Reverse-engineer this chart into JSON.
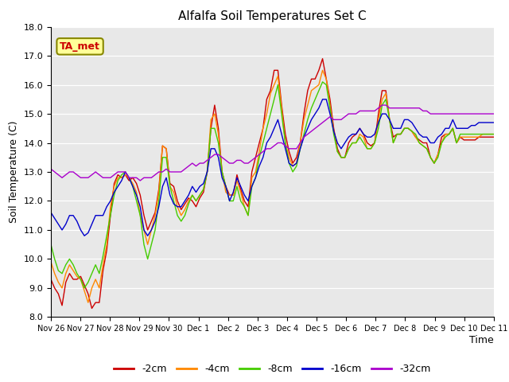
{
  "title": "Alfalfa Soil Temperatures Set C",
  "xlabel": "Time",
  "ylabel": "Soil Temperature (C)",
  "ylim": [
    8.0,
    18.0
  ],
  "yticks": [
    8.0,
    9.0,
    10.0,
    11.0,
    12.0,
    13.0,
    14.0,
    15.0,
    16.0,
    17.0,
    18.0
  ],
  "x_labels": [
    "Nov 26",
    "Nov 27",
    "Nov 28",
    "Nov 29",
    "Nov 30",
    "Dec 1",
    "Dec 2",
    "Dec 3",
    "Dec 4",
    "Dec 5",
    "Dec 6",
    "Dec 7",
    "Dec 8",
    "Dec 9",
    "Dec 10",
    "Dec 11"
  ],
  "colors": {
    "-2cm": "#cc0000",
    "-4cm": "#ff8800",
    "-8cm": "#44cc00",
    "-16cm": "#0000cc",
    "-32cm": "#aa00cc"
  },
  "plot_bg_color": "#e8e8e8",
  "fig_bg_color": "#ffffff",
  "grid_color": "#ffffff",
  "annotation_text": "TA_met",
  "annotation_box_facecolor": "#ffff99",
  "annotation_box_edgecolor": "#888800",
  "series": {
    "-2cm": [
      9.3,
      9.0,
      8.8,
      8.4,
      9.2,
      9.5,
      9.3,
      9.3,
      9.4,
      9.1,
      8.8,
      8.3,
      8.5,
      8.5,
      9.6,
      10.3,
      11.5,
      12.6,
      12.9,
      12.8,
      12.9,
      12.7,
      12.8,
      12.6,
      12.2,
      11.5,
      11.0,
      11.3,
      11.6,
      12.4,
      13.9,
      13.8,
      12.6,
      12.5,
      12.0,
      11.7,
      11.9,
      12.1,
      12.0,
      11.8,
      12.1,
      12.3,
      13.0,
      14.5,
      15.3,
      14.5,
      13.0,
      12.5,
      12.2,
      12.2,
      12.9,
      12.4,
      12.0,
      11.8,
      13.0,
      13.5,
      14.0,
      14.5,
      15.5,
      15.8,
      16.5,
      16.5,
      15.3,
      14.3,
      13.7,
      13.3,
      13.5,
      14.0,
      15.0,
      15.8,
      16.2,
      16.2,
      16.5,
      16.9,
      16.2,
      15.5,
      14.5,
      13.8,
      13.5,
      13.5,
      14.0,
      14.2,
      14.3,
      14.5,
      14.3,
      14.0,
      13.9,
      14.0,
      15.0,
      15.8,
      15.8,
      14.8,
      14.2,
      14.3,
      14.3,
      14.5,
      14.5,
      14.4,
      14.2,
      14.1,
      14.0,
      14.0,
      13.5,
      13.3,
      13.6,
      14.2,
      14.3,
      14.3,
      14.5,
      14.0,
      14.2,
      14.1,
      14.1,
      14.1,
      14.1,
      14.2,
      14.2,
      14.2,
      14.2,
      14.2
    ],
    "-4cm": [
      9.9,
      9.5,
      9.2,
      9.0,
      9.5,
      9.8,
      9.6,
      9.4,
      9.3,
      8.9,
      8.5,
      9.0,
      9.3,
      9.0,
      9.8,
      10.5,
      11.8,
      12.5,
      12.8,
      12.8,
      12.9,
      12.8,
      12.6,
      12.3,
      11.5,
      11.0,
      10.5,
      11.0,
      11.5,
      12.3,
      13.9,
      13.8,
      12.5,
      12.3,
      11.8,
      11.5,
      11.7,
      12.0,
      12.2,
      12.0,
      12.2,
      12.4,
      13.0,
      14.8,
      15.0,
      14.3,
      13.0,
      12.3,
      12.2,
      12.2,
      12.7,
      12.3,
      11.8,
      11.5,
      12.8,
      13.0,
      13.7,
      14.5,
      15.0,
      15.7,
      16.0,
      16.3,
      15.2,
      14.0,
      13.5,
      13.2,
      13.3,
      14.0,
      14.8,
      15.3,
      15.8,
      15.9,
      16.0,
      16.5,
      16.2,
      15.3,
      14.4,
      13.7,
      13.5,
      13.5,
      13.8,
      14.0,
      14.0,
      14.3,
      14.2,
      13.8,
      13.8,
      14.0,
      14.8,
      15.5,
      15.7,
      14.8,
      14.0,
      14.3,
      14.3,
      14.5,
      14.5,
      14.4,
      14.2,
      14.0,
      13.9,
      13.8,
      13.5,
      13.3,
      13.6,
      14.0,
      14.3,
      14.3,
      14.5,
      14.0,
      14.2,
      14.2,
      14.2,
      14.2,
      14.2,
      14.2,
      14.3,
      14.3,
      14.3,
      14.3
    ],
    "-8cm": [
      10.5,
      10.0,
      9.6,
      9.5,
      9.8,
      10.0,
      9.8,
      9.5,
      9.3,
      9.0,
      9.2,
      9.5,
      9.8,
      9.5,
      10.1,
      10.8,
      11.5,
      12.2,
      12.7,
      12.9,
      13.0,
      12.8,
      12.5,
      12.0,
      11.5,
      10.5,
      10.0,
      10.5,
      11.0,
      12.0,
      13.5,
      13.5,
      12.5,
      12.0,
      11.5,
      11.3,
      11.5,
      11.9,
      12.2,
      12.0,
      12.2,
      12.4,
      13.0,
      14.5,
      14.5,
      14.0,
      13.0,
      12.5,
      12.0,
      12.0,
      12.5,
      12.0,
      11.8,
      11.5,
      12.5,
      12.8,
      13.5,
      14.0,
      14.5,
      15.0,
      15.5,
      16.0,
      15.0,
      14.0,
      13.3,
      13.0,
      13.2,
      13.8,
      14.3,
      14.8,
      15.2,
      15.5,
      15.8,
      16.1,
      16.0,
      15.2,
      14.3,
      13.7,
      13.5,
      13.5,
      13.8,
      14.0,
      14.0,
      14.2,
      14.0,
      13.8,
      13.8,
      14.0,
      14.5,
      15.3,
      15.5,
      14.8,
      14.0,
      14.3,
      14.3,
      14.5,
      14.5,
      14.4,
      14.3,
      14.0,
      13.9,
      13.8,
      13.5,
      13.3,
      13.5,
      14.0,
      14.2,
      14.3,
      14.5,
      14.0,
      14.3,
      14.3,
      14.3,
      14.3,
      14.3,
      14.3,
      14.3,
      14.3,
      14.3,
      14.3
    ],
    "-16cm": [
      11.6,
      11.4,
      11.2,
      11.0,
      11.2,
      11.5,
      11.5,
      11.3,
      11.0,
      10.8,
      10.9,
      11.2,
      11.5,
      11.5,
      11.5,
      11.8,
      12.0,
      12.3,
      12.5,
      12.7,
      13.0,
      12.8,
      12.5,
      12.2,
      11.8,
      11.0,
      10.8,
      11.0,
      11.3,
      11.8,
      12.5,
      12.8,
      12.2,
      11.9,
      11.8,
      11.8,
      12.0,
      12.2,
      12.5,
      12.3,
      12.5,
      12.6,
      13.0,
      13.8,
      13.8,
      13.5,
      12.8,
      12.5,
      12.0,
      12.3,
      12.8,
      12.5,
      12.2,
      12.0,
      12.5,
      12.8,
      13.2,
      13.5,
      14.0,
      14.2,
      14.5,
      14.8,
      14.3,
      13.8,
      13.3,
      13.2,
      13.3,
      13.8,
      14.2,
      14.5,
      14.8,
      15.0,
      15.2,
      15.5,
      15.5,
      15.0,
      14.4,
      14.0,
      13.8,
      14.0,
      14.2,
      14.3,
      14.3,
      14.5,
      14.3,
      14.2,
      14.2,
      14.3,
      14.7,
      15.0,
      15.0,
      14.8,
      14.5,
      14.5,
      14.5,
      14.8,
      14.8,
      14.7,
      14.5,
      14.3,
      14.2,
      14.2,
      14.0,
      14.0,
      14.2,
      14.3,
      14.5,
      14.5,
      14.8,
      14.5,
      14.5,
      14.5,
      14.5,
      14.6,
      14.6,
      14.7,
      14.7,
      14.7,
      14.7,
      14.7
    ],
    "-32cm": [
      13.1,
      13.0,
      12.9,
      12.8,
      12.9,
      13.0,
      13.0,
      12.9,
      12.8,
      12.8,
      12.8,
      12.9,
      13.0,
      12.9,
      12.8,
      12.8,
      12.8,
      12.9,
      13.0,
      13.0,
      13.0,
      12.8,
      12.8,
      12.8,
      12.7,
      12.8,
      12.8,
      12.8,
      12.9,
      13.0,
      13.0,
      13.1,
      13.0,
      13.0,
      13.0,
      13.0,
      13.1,
      13.2,
      13.3,
      13.2,
      13.3,
      13.3,
      13.4,
      13.5,
      13.6,
      13.6,
      13.5,
      13.4,
      13.3,
      13.3,
      13.4,
      13.4,
      13.3,
      13.3,
      13.4,
      13.5,
      13.6,
      13.7,
      13.8,
      13.8,
      13.9,
      14.0,
      14.0,
      13.9,
      13.8,
      13.8,
      13.8,
      14.0,
      14.2,
      14.3,
      14.4,
      14.5,
      14.6,
      14.7,
      14.8,
      14.9,
      14.8,
      14.8,
      14.8,
      14.9,
      15.0,
      15.0,
      15.0,
      15.1,
      15.1,
      15.1,
      15.1,
      15.1,
      15.2,
      15.3,
      15.3,
      15.2,
      15.2,
      15.2,
      15.2,
      15.2,
      15.2,
      15.2,
      15.2,
      15.2,
      15.1,
      15.1,
      15.0,
      15.0,
      15.0,
      15.0,
      15.0,
      15.0,
      15.0,
      15.0,
      15.0,
      15.0,
      15.0,
      15.0,
      15.0,
      15.0,
      15.0,
      15.0,
      15.0,
      15.0
    ]
  }
}
